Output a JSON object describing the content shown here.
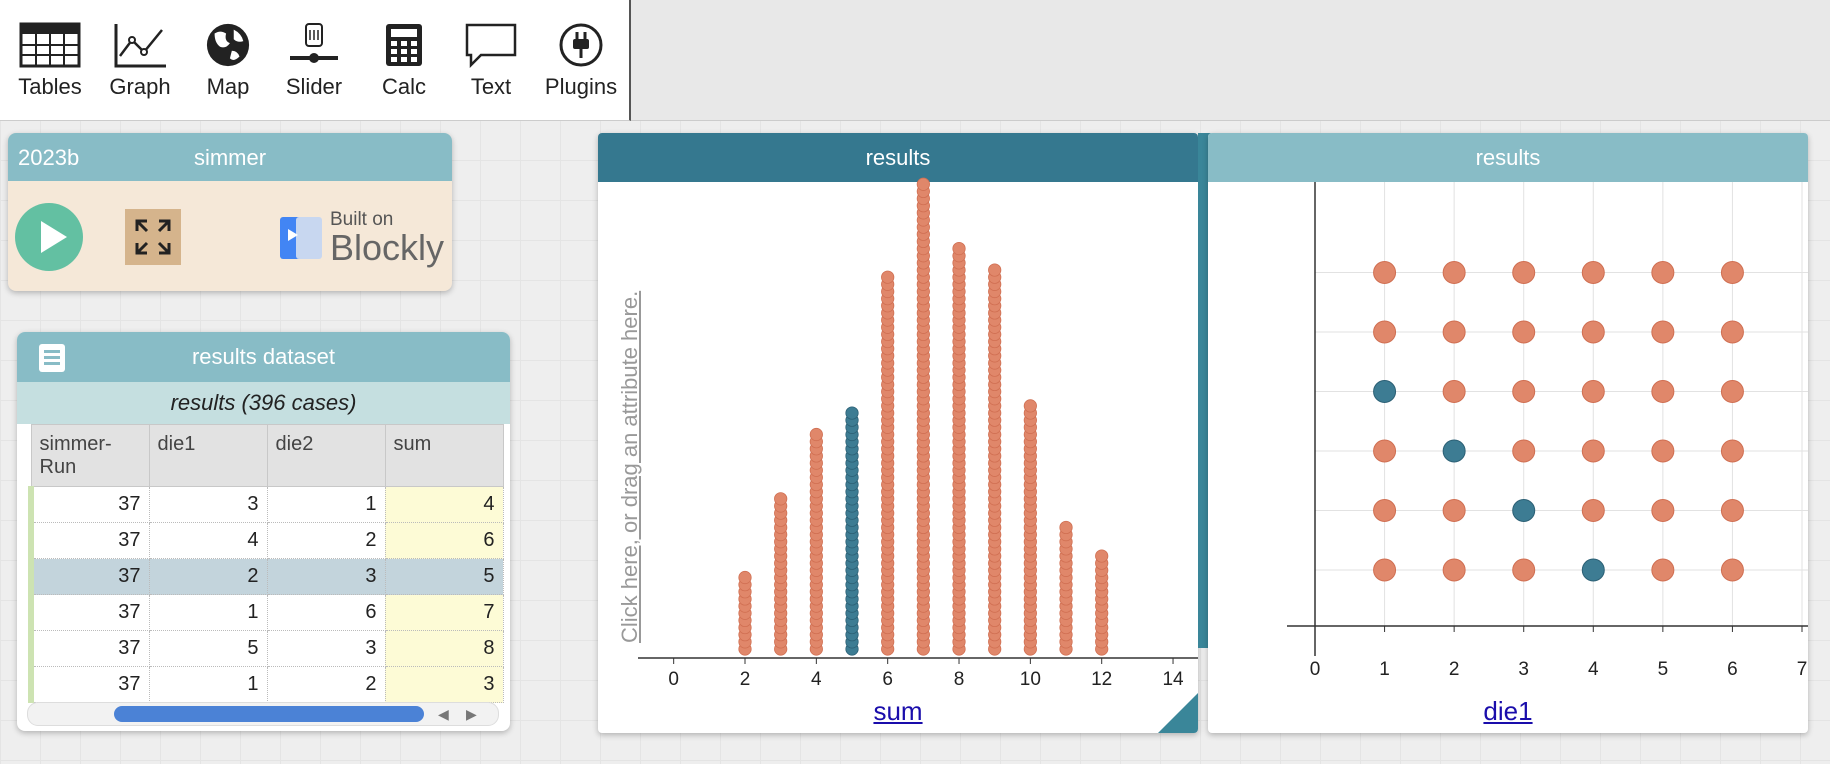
{
  "toolbar": {
    "items": [
      {
        "label": "Tables",
        "icon": "tables-icon"
      },
      {
        "label": "Graph",
        "icon": "graph-icon"
      },
      {
        "label": "Map",
        "icon": "map-icon"
      },
      {
        "label": "Slider",
        "icon": "slider-icon"
      },
      {
        "label": "Calc",
        "icon": "calc-icon"
      },
      {
        "label": "Text",
        "icon": "text-icon"
      },
      {
        "label": "Plugins",
        "icon": "plugins-icon"
      }
    ]
  },
  "simmer": {
    "version": "2023b",
    "title": "simmer",
    "built_on": "Built on",
    "blockly": "Blockly"
  },
  "table": {
    "title": "results dataset",
    "subtitle": "results (396 cases)",
    "columns": [
      "simmer-Run",
      "die1",
      "die2",
      "sum"
    ],
    "rows": [
      [
        "37",
        "3",
        "1",
        "4"
      ],
      [
        "37",
        "4",
        "2",
        "6"
      ],
      [
        "37",
        "2",
        "3",
        "5"
      ],
      [
        "37",
        "1",
        "6",
        "7"
      ],
      [
        "37",
        "5",
        "3",
        "8"
      ],
      [
        "37",
        "1",
        "2",
        "3"
      ]
    ],
    "selected_row": 2
  },
  "graph1": {
    "title": "results",
    "y_placeholder": "Click here, or drag an attribute here.",
    "x_attribute": "sum"
  },
  "graph2": {
    "title": "results",
    "x_attribute": "die1"
  },
  "palette": [
    "move-icon",
    "eye-icon",
    "ruler-icon",
    "chart-icon",
    "brush-icon",
    "camera-icon"
  ],
  "colors": {
    "point": "#e0876a",
    "selected": "#3d7c93"
  },
  "chart_data": [
    {
      "type": "scatter",
      "title": "results",
      "xlabel": "sum",
      "ylabel": "",
      "x_ticks": [
        0,
        2,
        4,
        6,
        8,
        10,
        12,
        14
      ],
      "xlim": [
        -1,
        14.7
      ],
      "dot_plot_counts": {
        "2": 11,
        "3": 22,
        "4": 31,
        "5": 34,
        "6": 53,
        "7": 66,
        "8": 57,
        "9": 54,
        "10": 35,
        "11": 18,
        "12": 14
      },
      "selected": {
        "x": 5,
        "count": 34
      }
    },
    {
      "type": "scatter",
      "title": "results",
      "xlabel": "die1",
      "ylabel": "",
      "x_ticks": [
        0,
        1,
        2,
        3,
        4,
        5,
        6,
        7
      ],
      "xlim": [
        0,
        7
      ],
      "x_values": [
        1,
        2,
        3,
        4,
        5,
        6
      ],
      "y_values": [
        1,
        2,
        3,
        4,
        5,
        6
      ],
      "selected_points": [
        [
          1,
          4
        ],
        [
          2,
          3
        ],
        [
          3,
          2
        ],
        [
          4,
          1
        ]
      ]
    }
  ]
}
